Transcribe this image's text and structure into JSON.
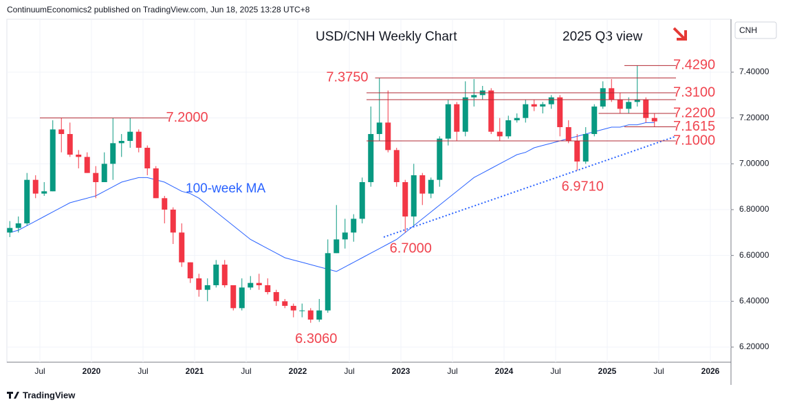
{
  "header": "ContinuumEconomics2 published on TradingView.com, Jun 18, 2025 13:28 UTC+8",
  "footer": "TradingView",
  "chart_data": {
    "type": "candlestick",
    "title": "USD/CNH Weekly Chart",
    "subtitle": "2025 Q3 view",
    "y_label": "CNH",
    "up_color": "#089981",
    "down_color": "#f23645",
    "grid": true,
    "ylim": [
      6.134,
      7.631
    ],
    "yticks": [
      {
        "value": 6.2,
        "label": "6.20000"
      },
      {
        "value": 6.4,
        "label": "6.40000"
      },
      {
        "value": 6.6,
        "label": "6.60000"
      },
      {
        "value": 6.8,
        "label": "6.80000"
      },
      {
        "value": 7.0,
        "label": "7.00000"
      },
      {
        "value": 7.2,
        "label": "7.20000"
      },
      {
        "value": 7.4,
        "label": "7.40000"
      }
    ],
    "xticks": [
      {
        "value": "2019-07",
        "label": "Jul"
      },
      {
        "value": "2020-01",
        "label": "2020"
      },
      {
        "value": "2020-07",
        "label": "Jul"
      },
      {
        "value": "2021-01",
        "label": "2021"
      },
      {
        "value": "2021-07",
        "label": "Jul"
      },
      {
        "value": "2022-01",
        "label": "2022"
      },
      {
        "value": "2022-07",
        "label": "Jul"
      },
      {
        "value": "2023-01",
        "label": "2023"
      },
      {
        "value": "2023-07",
        "label": "Jul"
      },
      {
        "value": "2024-01",
        "label": "2024"
      },
      {
        "value": "2024-07",
        "label": "Jul"
      },
      {
        "value": "2025-01",
        "label": "2025"
      },
      {
        "value": "2025-07",
        "label": "Jul"
      },
      {
        "value": "2026-01",
        "label": "2026"
      }
    ],
    "x": [
      "2019-03",
      "2019-04",
      "2019-05",
      "2019-06",
      "2019-07",
      "2019-08",
      "2019-09",
      "2019-10",
      "2019-11",
      "2019-12",
      "2020-01",
      "2020-02",
      "2020-03",
      "2020-04",
      "2020-05",
      "2020-06",
      "2020-07",
      "2020-08",
      "2020-09",
      "2020-10",
      "2020-11",
      "2020-12",
      "2021-01",
      "2021-02",
      "2021-03",
      "2021-04",
      "2021-05",
      "2021-06",
      "2021-07",
      "2021-08",
      "2021-09",
      "2021-10",
      "2021-11",
      "2021-12",
      "2022-01",
      "2022-02",
      "2022-03",
      "2022-04",
      "2022-05",
      "2022-06",
      "2022-07",
      "2022-08",
      "2022-09",
      "2022-10",
      "2022-11",
      "2022-12",
      "2023-01",
      "2023-02",
      "2023-03",
      "2023-04",
      "2023-05",
      "2023-06",
      "2023-07",
      "2023-08",
      "2023-09",
      "2023-10",
      "2023-11",
      "2023-12",
      "2024-01",
      "2024-02",
      "2024-03",
      "2024-04",
      "2024-05",
      "2024-06",
      "2024-07",
      "2024-08",
      "2024-09",
      "2024-10",
      "2024-11",
      "2024-12",
      "2025-01",
      "2025-02",
      "2025-03",
      "2025-04",
      "2025-05",
      "2025-06"
    ],
    "ohlc": [
      [
        6.7,
        6.75,
        6.68,
        6.72
      ],
      [
        6.72,
        6.77,
        6.7,
        6.74
      ],
      [
        6.74,
        6.96,
        6.73,
        6.93
      ],
      [
        6.93,
        6.95,
        6.85,
        6.87
      ],
      [
        6.87,
        6.92,
        6.86,
        6.88
      ],
      [
        6.88,
        7.19,
        6.88,
        7.15
      ],
      [
        7.15,
        7.2,
        7.05,
        7.13
      ],
      [
        7.13,
        7.18,
        7.03,
        7.04
      ],
      [
        7.04,
        7.06,
        6.98,
        7.03
      ],
      [
        7.03,
        7.05,
        6.96,
        6.96
      ],
      [
        6.96,
        6.99,
        6.85,
        6.92
      ],
      [
        6.92,
        7.05,
        6.92,
        7.0
      ],
      [
        7.0,
        7.2,
        6.93,
        7.09
      ],
      [
        7.09,
        7.13,
        7.03,
        7.1
      ],
      [
        7.1,
        7.2,
        7.07,
        7.14
      ],
      [
        7.14,
        7.15,
        7.05,
        7.07
      ],
      [
        7.07,
        7.08,
        6.95,
        6.98
      ],
      [
        6.98,
        6.99,
        6.85,
        6.85
      ],
      [
        6.85,
        6.86,
        6.74,
        6.8
      ],
      [
        6.8,
        6.81,
        6.65,
        6.7
      ],
      [
        6.7,
        6.74,
        6.55,
        6.57
      ],
      [
        6.57,
        6.57,
        6.48,
        6.5
      ],
      [
        6.5,
        6.52,
        6.42,
        6.45
      ],
      [
        6.45,
        6.5,
        6.4,
        6.47
      ],
      [
        6.47,
        6.58,
        6.46,
        6.56
      ],
      [
        6.56,
        6.58,
        6.46,
        6.47
      ],
      [
        6.47,
        6.47,
        6.36,
        6.37
      ],
      [
        6.37,
        6.5,
        6.36,
        6.46
      ],
      [
        6.46,
        6.51,
        6.45,
        6.48
      ],
      [
        6.48,
        6.52,
        6.45,
        6.47
      ],
      [
        6.47,
        6.5,
        6.43,
        6.44
      ],
      [
        6.44,
        6.45,
        6.38,
        6.4
      ],
      [
        6.4,
        6.41,
        6.37,
        6.38
      ],
      [
        6.38,
        6.39,
        6.33,
        6.36
      ],
      [
        6.36,
        6.39,
        6.33,
        6.36
      ],
      [
        6.36,
        6.37,
        6.306,
        6.32
      ],
      [
        6.32,
        6.41,
        6.31,
        6.36
      ],
      [
        6.36,
        6.67,
        6.35,
        6.61
      ],
      [
        6.61,
        6.82,
        6.61,
        6.67
      ],
      [
        6.67,
        6.76,
        6.63,
        6.7
      ],
      [
        6.7,
        6.78,
        6.66,
        6.76
      ],
      [
        6.76,
        6.94,
        6.74,
        6.92
      ],
      [
        6.92,
        7.25,
        6.9,
        7.13
      ],
      [
        7.13,
        7.375,
        7.1,
        7.18
      ],
      [
        7.18,
        7.32,
        7.05,
        7.06
      ],
      [
        7.06,
        7.07,
        6.9,
        6.92
      ],
      [
        6.92,
        6.93,
        6.7,
        6.77
      ],
      [
        6.77,
        7.0,
        6.73,
        6.95
      ],
      [
        6.95,
        6.96,
        6.82,
        6.87
      ],
      [
        6.87,
        6.94,
        6.85,
        6.93
      ],
      [
        6.93,
        7.12,
        6.9,
        7.11
      ],
      [
        7.11,
        7.28,
        7.08,
        7.26
      ],
      [
        7.26,
        7.27,
        7.1,
        7.14
      ],
      [
        7.14,
        7.36,
        7.12,
        7.29
      ],
      [
        7.29,
        7.37,
        7.25,
        7.3
      ],
      [
        7.3,
        7.34,
        7.28,
        7.32
      ],
      [
        7.32,
        7.33,
        7.13,
        7.14
      ],
      [
        7.14,
        7.2,
        7.1,
        7.12
      ],
      [
        7.12,
        7.21,
        7.11,
        7.19
      ],
      [
        7.19,
        7.22,
        7.18,
        7.2
      ],
      [
        7.2,
        7.28,
        7.18,
        7.26
      ],
      [
        7.26,
        7.28,
        7.23,
        7.25
      ],
      [
        7.25,
        7.27,
        7.22,
        7.26
      ],
      [
        7.26,
        7.3,
        7.24,
        7.29
      ],
      [
        7.29,
        7.3,
        7.12,
        7.16
      ],
      [
        7.16,
        7.19,
        7.09,
        7.1
      ],
      [
        7.1,
        7.13,
        6.971,
        7.01
      ],
      [
        7.01,
        7.16,
        7.0,
        7.13
      ],
      [
        7.13,
        7.26,
        7.12,
        7.25
      ],
      [
        7.25,
        7.36,
        7.24,
        7.33
      ],
      [
        7.33,
        7.37,
        7.27,
        7.28
      ],
      [
        7.28,
        7.31,
        7.22,
        7.24
      ],
      [
        7.24,
        7.29,
        7.22,
        7.27
      ],
      [
        7.27,
        7.429,
        7.25,
        7.28
      ],
      [
        7.28,
        7.29,
        7.18,
        7.2
      ],
      [
        7.2,
        7.22,
        7.16,
        7.185
      ]
    ],
    "ma": {
      "name": "100-week MA",
      "color": "#2962ff",
      "values": [
        6.7,
        6.71,
        6.73,
        6.75,
        6.77,
        6.79,
        6.81,
        6.83,
        6.84,
        6.85,
        6.86,
        6.88,
        6.9,
        6.92,
        6.93,
        6.94,
        6.94,
        6.93,
        6.92,
        6.9,
        6.88,
        6.87,
        6.85,
        6.82,
        6.79,
        6.76,
        6.73,
        6.7,
        6.67,
        6.65,
        6.63,
        6.61,
        6.59,
        6.58,
        6.57,
        6.56,
        6.55,
        6.54,
        6.53,
        6.55,
        6.57,
        6.59,
        6.61,
        6.63,
        6.65,
        6.67,
        6.7,
        6.73,
        6.76,
        6.79,
        6.82,
        6.85,
        6.88,
        6.91,
        6.94,
        6.96,
        6.98,
        7.0,
        7.02,
        7.04,
        7.05,
        7.07,
        7.08,
        7.09,
        7.1,
        7.11,
        7.12,
        7.13,
        7.14,
        7.15,
        7.16,
        7.16,
        7.17,
        7.17,
        7.18,
        7.18
      ]
    },
    "level_color": "#b22833",
    "label_color": "#f0444f",
    "levels": [
      {
        "value": 7.429,
        "label": "7.4290",
        "x": [
          "2025-03",
          "2025-09"
        ],
        "side": "right"
      },
      {
        "value": 7.375,
        "label": "7.3750",
        "x": [
          "2022-10",
          "2025-09"
        ],
        "side": "left"
      },
      {
        "value": 7.31,
        "label": "7.3100",
        "x": [
          "2022-09",
          "2025-09"
        ],
        "side": "right"
      },
      {
        "value": 7.28,
        "label": null,
        "x": [
          "2022-09",
          "2025-09"
        ],
        "side": "right"
      },
      {
        "value": 7.22,
        "label": "7.2200",
        "x": [
          "2024-12",
          "2025-09"
        ],
        "side": "right"
      },
      {
        "value": 7.1615,
        "label": "7.1615",
        "x": [
          "2025-03",
          "2025-09"
        ],
        "side": "right"
      },
      {
        "value": 7.1,
        "label": "7.1000",
        "x": [
          "2022-09",
          "2025-09"
        ],
        "side": "right"
      },
      {
        "value": 7.2,
        "label": "7.2000",
        "x": [
          "2019-07",
          "2020-10"
        ],
        "side": "right"
      }
    ],
    "annotations": [
      {
        "value": 6.306,
        "label": "6.3060",
        "x": "2022-02"
      },
      {
        "value": 6.7,
        "label": "6.7000",
        "x": "2023-01"
      },
      {
        "value": 6.971,
        "label": "6.9710",
        "x": "2024-09"
      }
    ],
    "trendline": {
      "x": [
        "2022-11",
        "2025-09"
      ],
      "values": [
        6.68,
        7.12
      ],
      "color": "#2962ff",
      "style": "dotted"
    }
  }
}
